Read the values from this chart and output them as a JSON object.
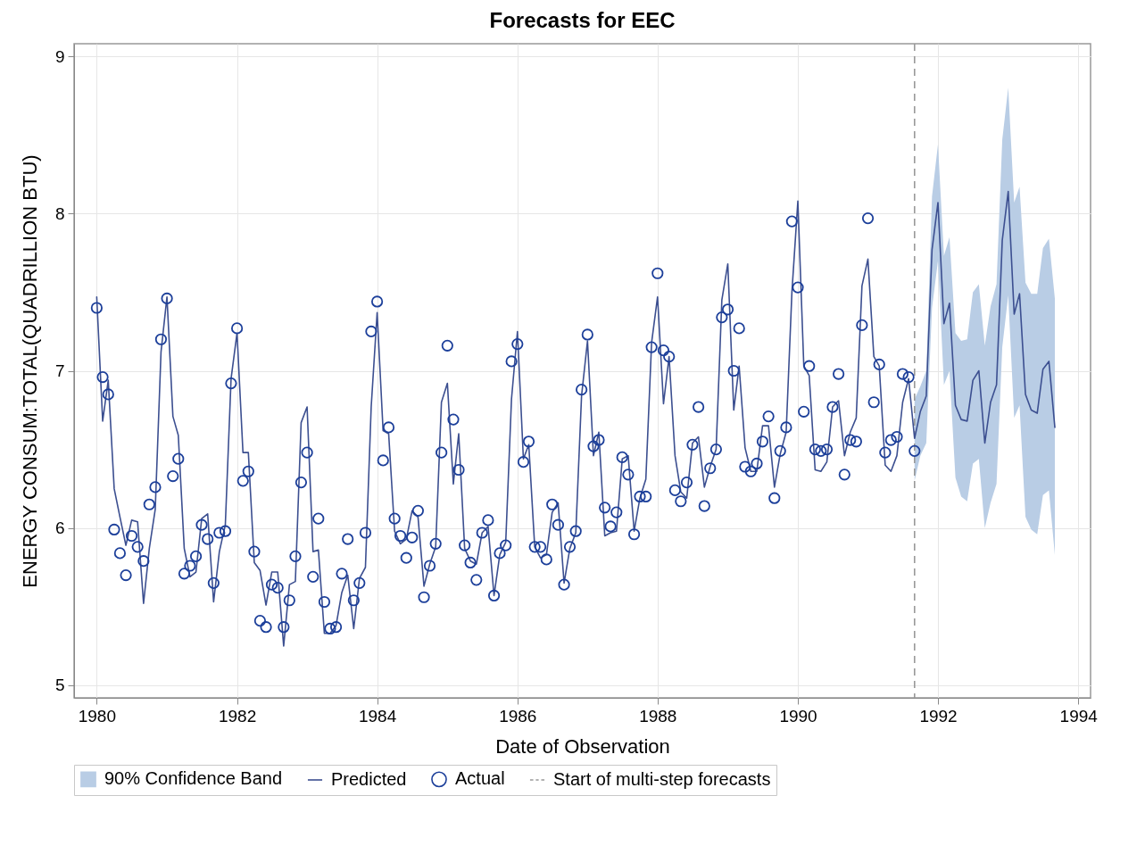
{
  "chart_data": {
    "type": "line",
    "title": "Forecasts for EEC",
    "xlabel": "Date of Observation",
    "ylabel": "ENERGY CONSUM:TOTAL(QUADRILLION BTU)",
    "x": [
      "1980-01",
      "1980-02",
      "1980-03",
      "1980-04",
      "1980-05",
      "1980-06",
      "1980-07",
      "1980-08",
      "1980-09",
      "1980-10",
      "1980-11",
      "1980-12",
      "1981-01",
      "1981-02",
      "1981-03",
      "1981-04",
      "1981-05",
      "1981-06",
      "1981-07",
      "1981-08",
      "1981-09",
      "1981-10",
      "1981-11",
      "1981-12",
      "1982-01",
      "1982-02",
      "1982-03",
      "1982-04",
      "1982-05",
      "1982-06",
      "1982-07",
      "1982-08",
      "1982-09",
      "1982-10",
      "1982-11",
      "1982-12",
      "1983-01",
      "1983-02",
      "1983-03",
      "1983-04",
      "1983-05",
      "1983-06",
      "1983-07",
      "1983-08",
      "1983-09",
      "1983-10",
      "1983-11",
      "1983-12",
      "1984-01",
      "1984-02",
      "1984-03",
      "1984-04",
      "1984-05",
      "1984-06",
      "1984-07",
      "1984-08",
      "1984-09",
      "1984-10",
      "1984-11",
      "1984-12",
      "1985-01",
      "1985-02",
      "1985-03",
      "1985-04",
      "1985-05",
      "1985-06",
      "1985-07",
      "1985-08",
      "1985-09",
      "1985-10",
      "1985-11",
      "1985-12",
      "1986-01",
      "1986-02",
      "1986-03",
      "1986-04",
      "1986-05",
      "1986-06",
      "1986-07",
      "1986-08",
      "1986-09",
      "1986-10",
      "1986-11",
      "1986-12",
      "1987-01",
      "1987-02",
      "1987-03",
      "1987-04",
      "1987-05",
      "1987-06",
      "1987-07",
      "1987-08",
      "1987-09",
      "1987-10",
      "1987-11",
      "1987-12",
      "1988-01",
      "1988-02",
      "1988-03",
      "1988-04",
      "1988-05",
      "1988-06",
      "1988-07",
      "1988-08",
      "1988-09",
      "1988-10",
      "1988-11",
      "1988-12",
      "1989-01",
      "1989-02",
      "1989-03",
      "1989-04",
      "1989-05",
      "1989-06",
      "1989-07",
      "1989-08",
      "1989-09",
      "1989-10",
      "1989-11",
      "1989-12",
      "1990-01",
      "1990-02",
      "1990-03",
      "1990-04",
      "1990-05",
      "1990-06",
      "1990-07",
      "1990-08",
      "1990-09",
      "1990-10",
      "1990-11",
      "1990-12",
      "1991-01",
      "1991-02",
      "1991-03",
      "1991-04",
      "1991-05",
      "1991-06",
      "1991-07",
      "1991-08",
      "1991-09",
      "1991-10",
      "1991-11",
      "1991-12",
      "1992-01",
      "1992-02",
      "1992-03",
      "1992-04",
      "1992-05",
      "1992-06",
      "1992-07",
      "1992-08",
      "1992-09",
      "1992-10",
      "1992-11",
      "1992-12",
      "1993-01",
      "1993-02",
      "1993-03",
      "1993-04",
      "1993-05",
      "1993-06",
      "1993-07",
      "1993-08",
      "1993-09"
    ],
    "series": [
      {
        "name": "90% Confidence Band",
        "type": "area",
        "color": "#b9cde5",
        "values": [
          null,
          null,
          null,
          null,
          null,
          null,
          null,
          null,
          null,
          null,
          null,
          null,
          null,
          null,
          null,
          null,
          null,
          null,
          null,
          null,
          null,
          null,
          null,
          null,
          null
        ],
        "x": [
          "1991-09",
          "1991-10",
          "1991-11",
          "1991-12",
          "1992-01",
          "1992-02",
          "1992-03",
          "1992-04",
          "1992-05",
          "1992-06",
          "1992-07",
          "1992-08",
          "1992-09",
          "1992-10",
          "1992-11",
          "1992-12",
          "1993-01",
          "1993-02",
          "1993-03",
          "1993-04",
          "1993-05",
          "1993-06",
          "1993-07",
          "1993-08",
          "1993-09"
        ],
        "lower": [
          6.3,
          6.46,
          6.54,
          7.4,
          7.7,
          6.91,
          7.0,
          6.32,
          6.2,
          6.17,
          6.41,
          6.44,
          6.0,
          6.16,
          6.28,
          7.15,
          7.48,
          6.7,
          6.78,
          6.07,
          5.99,
          5.96,
          6.21,
          6.24,
          5.83
        ],
        "upper": [
          6.82,
          6.9,
          7.0,
          8.11,
          8.44,
          7.73,
          7.85,
          7.24,
          7.19,
          7.2,
          7.5,
          7.55,
          7.16,
          7.41,
          7.55,
          8.47,
          8.8,
          8.07,
          8.17,
          7.56,
          7.49,
          7.49,
          7.78,
          7.84,
          7.46
        ]
      },
      {
        "name": "Predicted",
        "color": "#3c4f90",
        "line_style": "solid",
        "values": [
          7.47,
          6.68,
          6.94,
          6.25,
          6.07,
          5.89,
          6.05,
          6.04,
          5.52,
          5.87,
          6.12,
          7.12,
          7.47,
          6.71,
          6.59,
          5.87,
          5.69,
          5.72,
          6.06,
          6.09,
          5.53,
          5.85,
          6.02,
          6.95,
          7.24,
          6.48,
          6.48,
          5.78,
          5.73,
          5.51,
          5.72,
          5.72,
          5.25,
          5.64,
          5.66,
          6.67,
          6.77,
          5.85,
          5.86,
          5.33,
          5.33,
          5.38,
          5.59,
          5.7,
          5.36,
          5.68,
          5.75,
          6.77,
          7.37,
          6.62,
          6.6,
          5.98,
          5.9,
          5.93,
          6.11,
          6.07,
          5.63,
          5.77,
          5.88,
          6.8,
          6.92,
          6.28,
          6.6,
          5.87,
          5.79,
          5.77,
          5.97,
          6.01,
          5.57,
          5.83,
          5.91,
          6.82,
          7.25,
          6.44,
          6.53,
          5.88,
          5.81,
          5.83,
          6.1,
          6.16,
          5.65,
          5.87,
          5.97,
          6.84,
          7.19,
          6.46,
          6.61,
          5.95,
          5.97,
          5.98,
          6.44,
          6.46,
          5.98,
          6.19,
          6.31,
          7.18,
          7.47,
          6.79,
          7.09,
          6.46,
          6.23,
          6.19,
          6.54,
          6.58,
          6.26,
          6.39,
          6.5,
          7.45,
          7.68,
          6.75,
          7.03,
          6.51,
          6.36,
          6.36,
          6.65,
          6.65,
          6.26,
          6.47,
          6.61,
          7.5,
          8.08,
          7.03,
          6.97,
          6.37,
          6.36,
          6.42,
          6.77,
          6.81,
          6.46,
          6.61,
          6.7,
          7.54,
          7.71,
          7.09,
          7.03,
          6.4,
          6.36,
          6.46,
          6.8,
          6.95,
          6.57,
          6.74,
          6.84,
          7.77,
          8.07,
          7.3,
          7.43,
          6.78,
          6.69,
          6.68,
          6.94,
          7.0,
          6.54,
          6.8,
          6.91,
          7.83,
          8.14,
          7.36,
          7.49,
          6.85,
          6.75,
          6.73,
          7.01,
          7.06,
          6.64
        ]
      },
      {
        "name": "Actual",
        "type": "scatter",
        "color": "#1c3f9a",
        "marker": "circle",
        "x": [
          "1980-01",
          "1980-02",
          "1980-03",
          "1980-04",
          "1980-05",
          "1980-06",
          "1980-07",
          "1980-08",
          "1980-09",
          "1980-10",
          "1980-11",
          "1980-12",
          "1981-01",
          "1981-02",
          "1981-03",
          "1981-04",
          "1981-05",
          "1981-06",
          "1981-07",
          "1981-08",
          "1981-09",
          "1981-10",
          "1981-11",
          "1981-12",
          "1982-01",
          "1982-02",
          "1982-03",
          "1982-04",
          "1982-05",
          "1982-06",
          "1982-07",
          "1982-08",
          "1982-09",
          "1982-10",
          "1982-11",
          "1982-12",
          "1983-01",
          "1983-02",
          "1983-03",
          "1983-04",
          "1983-05",
          "1983-06",
          "1983-07",
          "1983-08",
          "1983-09",
          "1983-10",
          "1983-11",
          "1983-12",
          "1984-01",
          "1984-02",
          "1984-03",
          "1984-04",
          "1984-05",
          "1984-06",
          "1984-07",
          "1984-08",
          "1984-09",
          "1984-10",
          "1984-11",
          "1984-12",
          "1985-01",
          "1985-02",
          "1985-03",
          "1985-04",
          "1985-05",
          "1985-06",
          "1985-07",
          "1985-08",
          "1985-09",
          "1985-10",
          "1985-11",
          "1985-12",
          "1986-01",
          "1986-02",
          "1986-03",
          "1986-04",
          "1986-05",
          "1986-06",
          "1986-07",
          "1986-08",
          "1986-09",
          "1986-10",
          "1986-11",
          "1986-12",
          "1987-01",
          "1987-02",
          "1987-03",
          "1987-04",
          "1987-05",
          "1987-06",
          "1987-07",
          "1987-08",
          "1987-09",
          "1987-10",
          "1987-11",
          "1987-12",
          "1988-01",
          "1988-02",
          "1988-03",
          "1988-04",
          "1988-05",
          "1988-06",
          "1988-07",
          "1988-08",
          "1988-09",
          "1988-10",
          "1988-11",
          "1988-12",
          "1989-01",
          "1989-02",
          "1989-03",
          "1989-04",
          "1989-05",
          "1989-06",
          "1989-07",
          "1989-08",
          "1989-09",
          "1989-10",
          "1989-11",
          "1989-12",
          "1990-01",
          "1990-02",
          "1990-03",
          "1990-04",
          "1990-05",
          "1990-06",
          "1990-07",
          "1990-08",
          "1990-09",
          "1990-10",
          "1990-11",
          "1990-12",
          "1991-01",
          "1991-02",
          "1991-03",
          "1991-04",
          "1991-05",
          "1991-06",
          "1991-07",
          "1991-08",
          "1991-09"
        ],
        "values": [
          7.4,
          6.96,
          6.85,
          5.99,
          5.84,
          5.7,
          5.95,
          5.88,
          5.79,
          6.15,
          6.26,
          7.2,
          7.46,
          6.33,
          6.44,
          5.71,
          5.76,
          5.82,
          6.02,
          5.93,
          5.65,
          5.97,
          5.98,
          6.92,
          7.27,
          6.3,
          6.36,
          5.85,
          5.41,
          5.37,
          5.64,
          5.62,
          5.37,
          5.54,
          5.82,
          6.29,
          6.48,
          5.69,
          6.06,
          5.53,
          5.36,
          5.37,
          5.71,
          5.93,
          5.54,
          5.65,
          5.97,
          7.25,
          7.44,
          6.43,
          6.64,
          6.06,
          5.95,
          5.81,
          5.94,
          6.11,
          5.56,
          5.76,
          5.9,
          6.48,
          7.16,
          6.69,
          6.37,
          5.89,
          5.78,
          5.67,
          5.97,
          6.05,
          5.57,
          5.84,
          5.89,
          7.06,
          7.17,
          6.42,
          6.55,
          5.88,
          5.88,
          5.8,
          6.15,
          6.02,
          5.64,
          5.88,
          5.98,
          6.88,
          7.23,
          6.52,
          6.56,
          6.13,
          6.01,
          6.1,
          6.45,
          6.34,
          5.96,
          6.2,
          6.2,
          7.15,
          7.62,
          7.13,
          7.09,
          6.24,
          6.17,
          6.29,
          6.53,
          6.77,
          6.14,
          6.38,
          6.5,
          7.34,
          7.39,
          7.0,
          7.27,
          6.39,
          6.36,
          6.41,
          6.55,
          6.71,
          6.19,
          6.49,
          6.64,
          7.95,
          7.53,
          6.74,
          7.03,
          6.5,
          6.49,
          6.5,
          6.77,
          6.98,
          6.34,
          6.56,
          6.55,
          7.29,
          7.97,
          6.8,
          7.04,
          6.48,
          6.56,
          6.58,
          6.98,
          6.96,
          6.49
        ]
      }
    ],
    "ref_lines": [
      {
        "axis": "x",
        "value": "1991-09",
        "label": "Start of multi-step forecasts",
        "color": "#999999",
        "line_style": "dashed"
      }
    ],
    "xlim": [
      "1979-09-05",
      "1994-03-06"
    ],
    "xticks": [
      "1980",
      "1982",
      "1984",
      "1986",
      "1988",
      "1990",
      "1992",
      "1994"
    ],
    "ylim": [
      4.92,
      9.08
    ],
    "yticks": [
      5,
      6,
      7,
      8,
      9
    ],
    "grid": true,
    "legend": "bottom"
  }
}
